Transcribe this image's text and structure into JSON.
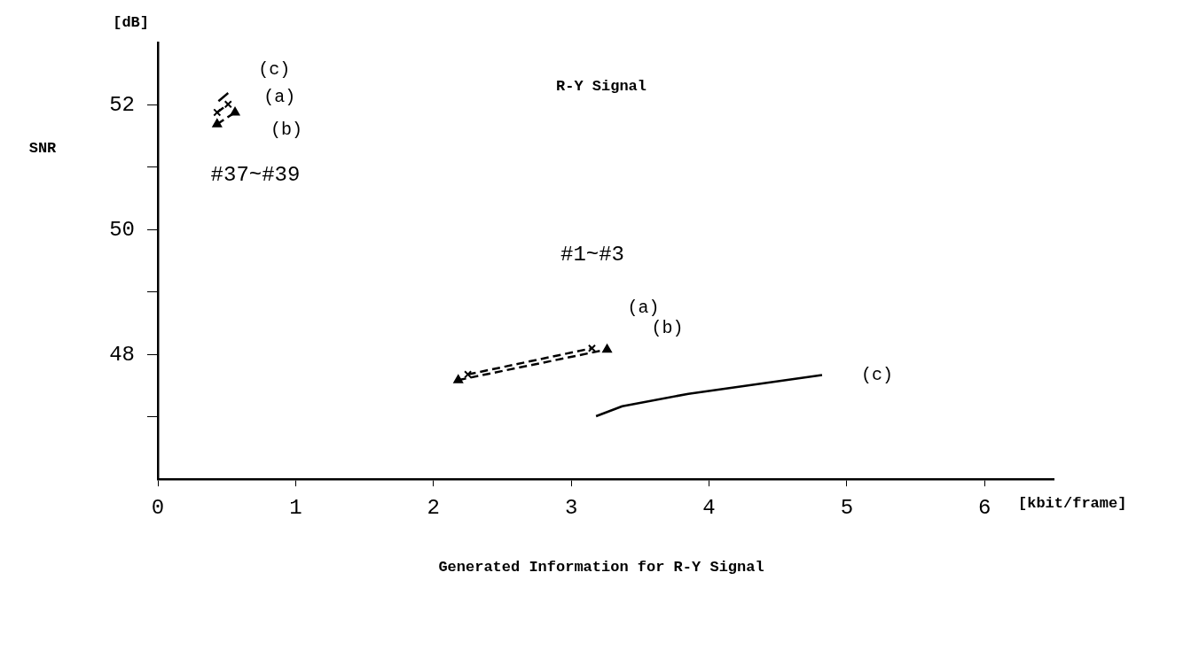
{
  "chart_data": {
    "type": "line",
    "title": "R-Y Signal",
    "xlabel": "Generated Information for R-Y Signal",
    "ylabel": "SNR",
    "annotations": [
      "[dB]",
      "[kbit/frame]",
      "#37~#39",
      "#1~#3"
    ],
    "xlim": [
      0,
      6.5
    ],
    "xticks": [
      0,
      1,
      2,
      3,
      4,
      5,
      6
    ],
    "ylim": [
      46,
      53
    ],
    "yticks": [
      {
        "value": 47,
        "label": null
      },
      48,
      {
        "value": 49,
        "label": null
      },
      50,
      {
        "value": 51,
        "label": null
      },
      52
    ],
    "series": [
      {
        "name": "(c)",
        "color": "#000000",
        "marker": "none",
        "line_style": "solid",
        "x": [
          0.44,
          0.51
        ],
        "values": [
          52.06,
          52.19
        ]
      },
      {
        "name": "(a)",
        "color": "#000000",
        "marker": "cross",
        "line_style": "dashed",
        "x": [
          0.43,
          0.51
        ],
        "values": [
          51.88,
          52.01
        ]
      },
      {
        "name": "(b)",
        "color": "#000000",
        "marker": "triangle",
        "line_style": "dashed",
        "x": [
          0.43,
          0.56
        ],
        "values": [
          51.69,
          51.88
        ]
      },
      {
        "name": "(a)",
        "color": "#000000",
        "marker": "cross",
        "line_style": "dashed",
        "x": [
          2.25,
          3.15
        ],
        "values": [
          47.68,
          48.1
        ]
      },
      {
        "name": "(b)",
        "color": "#000000",
        "marker": "triangle",
        "line_style": "dashed",
        "x": [
          2.18,
          3.26
        ],
        "values": [
          47.59,
          48.08
        ]
      },
      {
        "name": "(c)",
        "color": "#000000",
        "marker": "none",
        "line_style": "solid",
        "x": [
          3.18,
          3.37,
          3.85,
          4.82
        ],
        "values": [
          47.01,
          47.17,
          47.37,
          47.67
        ]
      }
    ]
  }
}
